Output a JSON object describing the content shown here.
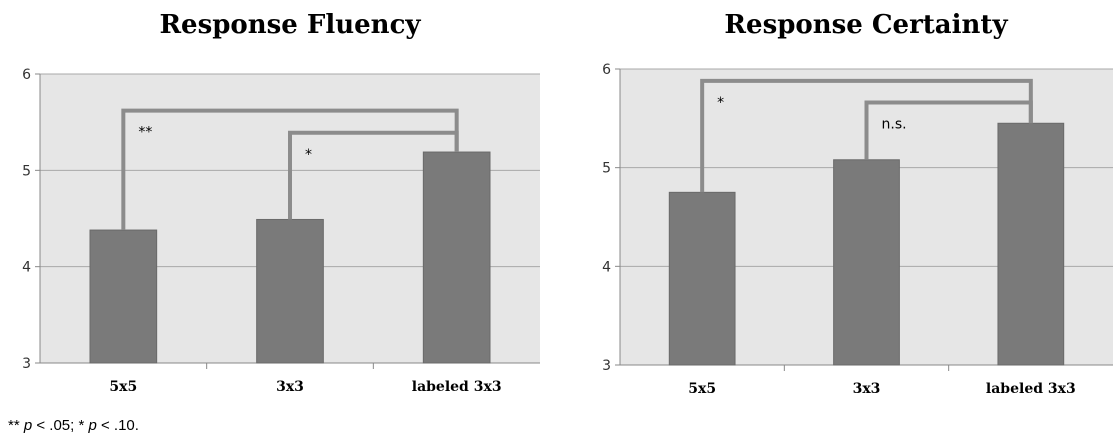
{
  "chart_data": [
    {
      "type": "bar",
      "title": "Response Fluency",
      "categories": [
        "5x5",
        "3x3",
        "labeled 3x3"
      ],
      "values": [
        4.38,
        4.49,
        5.19
      ],
      "ylim": [
        3,
        6
      ],
      "yticks": [
        "3",
        "4",
        "5",
        "6"
      ],
      "grid": true,
      "bar_color": "#7a7a7a",
      "plot_bg": "#e6e6e6",
      "significance": [
        {
          "from": 0,
          "to": 2,
          "label": "**",
          "level": 5.62
        },
        {
          "from": 1,
          "to": 2,
          "label": "*",
          "level": 5.39
        }
      ]
    },
    {
      "type": "bar",
      "title": "Response Certainty",
      "categories": [
        "5x5",
        "3x3",
        "labeled 3x3"
      ],
      "values": [
        4.75,
        5.08,
        5.45
      ],
      "ylim": [
        3,
        6
      ],
      "yticks": [
        "3",
        "4",
        "5",
        "6"
      ],
      "grid": true,
      "bar_color": "#7a7a7a",
      "plot_bg": "#e6e6e6",
      "significance": [
        {
          "from": 0,
          "to": 2,
          "label": "*",
          "level": 5.88
        },
        {
          "from": 1,
          "to": 2,
          "label": "n.s.",
          "level": 5.66
        }
      ]
    }
  ],
  "footnote": {
    "a": "** ",
    "p1": "p",
    "b": " < .05; * ",
    "p2": "p",
    "c": " < .10."
  }
}
